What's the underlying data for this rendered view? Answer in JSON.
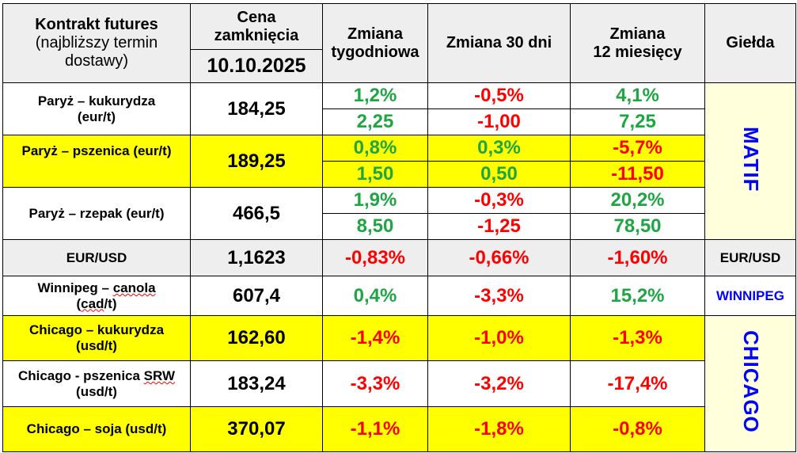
{
  "header": {
    "contract_l1": "Kontrakt futures",
    "contract_l2": "(najbliższy termin",
    "contract_l3": "dostawy)",
    "price_l1": "Cena",
    "price_l2": "zamknięcia",
    "date": "10.10.2025",
    "weekly_l1": "Zmiana",
    "weekly_l2": "tygodniowa",
    "d30": "Zmiana 30 dni",
    "m12_l1": "Zmiana",
    "m12_l2": "12 miesięcy",
    "exchange": "Giełda"
  },
  "paris": [
    {
      "l1": "Paryż – kukurydza",
      "l2": "(eur/t)",
      "price": "184,25",
      "pct": [
        "1,2%",
        "-0,5%",
        "4,1%"
      ],
      "abs": [
        "2,25",
        "-1,00",
        "7,25"
      ]
    },
    {
      "l1": "Paryż – pszenica (eur/t)",
      "l2": "",
      "price": "189,25",
      "pct": [
        "0,8%",
        "0,3%",
        "-5,7%"
      ],
      "abs": [
        "1,50",
        "0,50",
        "-11,50"
      ]
    },
    {
      "l1": "Paryż – rzepak (eur/t)",
      "l2": "",
      "price": "466,5",
      "pct": [
        "1,9%",
        "-0,3%",
        "20,2%"
      ],
      "abs": [
        "8,50",
        "-1,25",
        "78,50"
      ]
    }
  ],
  "matif": "MATIF",
  "eurusd": {
    "label": "EUR/USD",
    "price": "1,1623",
    "ch": [
      "-0,83%",
      "-0,66%",
      "-1,60%"
    ],
    "exchange": "EUR/USD"
  },
  "winnipeg": {
    "l1a": "Winnipeg – ",
    "l1b": "canola",
    "l2a": "(",
    "l2b": "cad",
    "l2c": "/t)",
    "price": "607,4",
    "ch": [
      "0,4%",
      "-3,3%",
      "15,2%"
    ],
    "exchange": "WINNIPEG"
  },
  "chicago": [
    {
      "l1": "Chicago – kukurydza",
      "l2": "(usd/t)",
      "price": "162,60",
      "ch": [
        "-1,4%",
        "-1,0%",
        "-1,3%"
      ]
    },
    {
      "l1": "Chicago - pszenica ",
      "l1b": "SRW",
      "l2": "(usd/t)",
      "price": "183,24",
      "ch": [
        "-3,3%",
        "-3,2%",
        "-17,4%"
      ]
    },
    {
      "l1": "Chicago – soja (usd/t)",
      "price": "370,07",
      "ch": [
        "-1,1%",
        "-1,8%",
        "-0,8%"
      ]
    }
  ],
  "chicago_exchange": "CHICAGO",
  "colors": {
    "positive": "#1fa544",
    "negative": "#ff0000",
    "highlight": "#ffff00",
    "exchange_text": "#0000ff"
  }
}
